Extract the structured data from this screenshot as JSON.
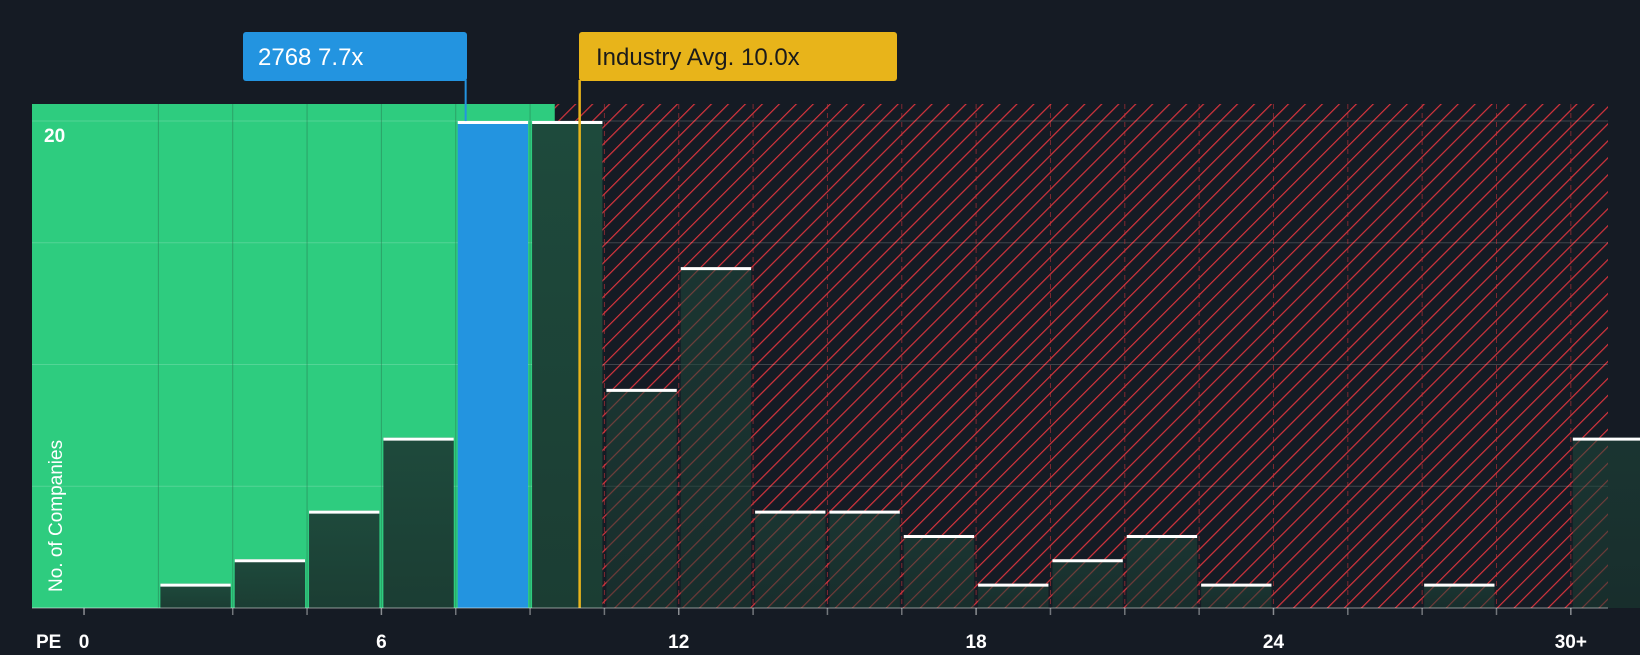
{
  "colors": {
    "background": "#151b24",
    "fair_zone": "#2ecc7f",
    "overvalued_hatch": "#d6343d",
    "company_highlight": "#2394e0",
    "industry_marker": "#e8b41a",
    "bar_fill": "#1e4a3c",
    "bar_top": "#ffffff"
  },
  "labels": {
    "company": "2768 7.7x",
    "industry": "Industry Avg. 10.0x",
    "x_prefix": "PE"
  },
  "chart_data": {
    "type": "bar",
    "title": "",
    "xlabel": "PE",
    "ylabel": "No. of Companies",
    "x_ticks": [
      {
        "value": 0,
        "label": "0"
      },
      {
        "value": 6,
        "label": "6"
      },
      {
        "value": 12,
        "label": "12"
      },
      {
        "value": 18,
        "label": "18"
      },
      {
        "value": 24,
        "label": "24"
      },
      {
        "value": 30,
        "label": "30+"
      }
    ],
    "y_ticks": [
      {
        "value": 20,
        "label": "20"
      }
    ],
    "xlim": [
      -1.05,
      30.75
    ],
    "ylim": [
      0,
      20.7
    ],
    "bin_width": 1.5,
    "bins": [
      {
        "start": 1.5,
        "count": 1
      },
      {
        "start": 3.0,
        "count": 2
      },
      {
        "start": 4.5,
        "count": 4
      },
      {
        "start": 6.0,
        "count": 7
      },
      {
        "start": 7.5,
        "count": 20,
        "highlight": true
      },
      {
        "start": 9.0,
        "count": 20
      },
      {
        "start": 10.5,
        "count": 9
      },
      {
        "start": 12.0,
        "count": 14
      },
      {
        "start": 13.5,
        "count": 4
      },
      {
        "start": 15.0,
        "count": 4
      },
      {
        "start": 16.5,
        "count": 3
      },
      {
        "start": 18.0,
        "count": 1
      },
      {
        "start": 19.5,
        "count": 2
      },
      {
        "start": 21.0,
        "count": 3
      },
      {
        "start": 22.5,
        "count": 1
      },
      {
        "start": 27.0,
        "count": 1
      },
      {
        "start": 30.0,
        "count": 7
      }
    ],
    "company_value": 7.7,
    "industry_avg": 10.0,
    "fair_zone_end": 9.5,
    "grid": true
  }
}
